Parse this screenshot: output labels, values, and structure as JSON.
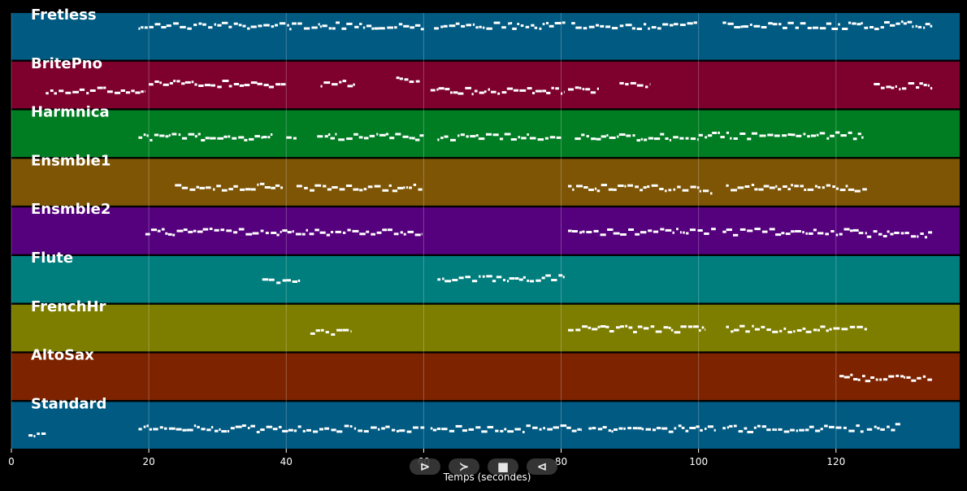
{
  "chart_data": {
    "type": "piano-roll",
    "xlabel": "Temps (secondes)",
    "xlim": [
      0,
      138
    ],
    "xticks": [
      0,
      20,
      40,
      60,
      80,
      100,
      120
    ],
    "grid": true,
    "tracks": [
      {
        "name": "Fretless",
        "color": "#005a82",
        "segments": [
          [
            18.5,
            60.2,
            0.25
          ],
          [
            61.5,
            80.6,
            0.25
          ],
          [
            81.5,
            99.8,
            0.25
          ],
          [
            103.5,
            127,
            0.25
          ],
          [
            127,
            134,
            0.22
          ]
        ]
      },
      {
        "name": "BritePno",
        "color": "#7d002d",
        "segments": [
          [
            5,
            19.5,
            0.6
          ],
          [
            20,
            40,
            0.45
          ],
          [
            45,
            50,
            0.45
          ],
          [
            56,
            59.5,
            0.35
          ],
          [
            61,
            80.5,
            0.6
          ],
          [
            81,
            85.5,
            0.6
          ],
          [
            88.5,
            93,
            0.45
          ],
          [
            125.5,
            134,
            0.5
          ]
        ]
      },
      {
        "name": "Harmnica",
        "color": "#007d23",
        "segments": [
          [
            18.5,
            38,
            0.55
          ],
          [
            40,
            41.5,
            0.55
          ],
          [
            44.5,
            60,
            0.55
          ],
          [
            62,
            80,
            0.55
          ],
          [
            82,
            100,
            0.55
          ],
          [
            100,
            124,
            0.52
          ]
        ]
      },
      {
        "name": "Ensmble1",
        "color": "#7d5505",
        "segments": [
          [
            23.8,
            39.5,
            0.58
          ],
          [
            41.5,
            59.8,
            0.6
          ],
          [
            81,
            101.5,
            0.6
          ],
          [
            101.7,
            102,
            0.7
          ],
          [
            104,
            124.5,
            0.6
          ]
        ]
      },
      {
        "name": "Ensmble2",
        "color": "#55007d",
        "segments": [
          [
            19.5,
            59.8,
            0.5
          ],
          [
            81,
            102.5,
            0.5
          ],
          [
            103.5,
            124.5,
            0.5
          ],
          [
            124.5,
            134,
            0.55
          ]
        ]
      },
      {
        "name": "Flute",
        "color": "#007d7d",
        "segments": [
          [
            36.5,
            42,
            0.48
          ],
          [
            62,
            80.5,
            0.45
          ]
        ]
      },
      {
        "name": "FrenchHr",
        "color": "#7d7d00",
        "segments": [
          [
            43.5,
            49.5,
            0.55
          ],
          [
            81,
            101,
            0.5
          ],
          [
            104,
            124.5,
            0.5
          ]
        ]
      },
      {
        "name": "AltoSax",
        "color": "#7d2300",
        "segments": [
          [
            120.5,
            125,
            0.5
          ],
          [
            125,
            134,
            0.52
          ]
        ]
      },
      {
        "name": "Standard",
        "color": "#005a82",
        "segments": [
          [
            2.5,
            5,
            0.7
          ],
          [
            18.5,
            60.2,
            0.55
          ],
          [
            61,
            83,
            0.55
          ],
          [
            84,
            102.5,
            0.55
          ],
          [
            103.5,
            124,
            0.55
          ],
          [
            124.5,
            129.5,
            0.52
          ]
        ]
      }
    ]
  },
  "controls": {
    "play_forward": "⊳",
    "next": "≻",
    "stop": "■",
    "play_back": "⊲"
  }
}
